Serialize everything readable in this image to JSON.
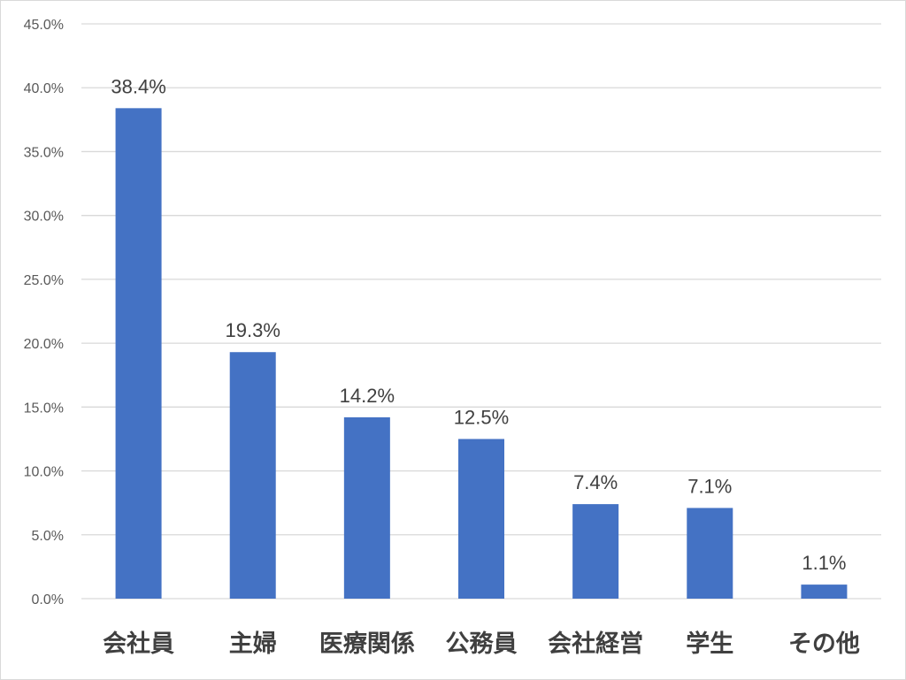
{
  "chart_data": {
    "type": "bar",
    "categories": [
      "会社員",
      "主婦",
      "医療関係",
      "公務員",
      "会社経営",
      "学生",
      "その他"
    ],
    "values": [
      38.4,
      19.3,
      14.2,
      12.5,
      7.4,
      7.1,
      1.1
    ],
    "data_labels": [
      "38.4%",
      "19.3%",
      "14.2%",
      "12.5%",
      "7.4%",
      "7.1%",
      "1.1%"
    ],
    "yticks": [
      0,
      5,
      10,
      15,
      20,
      25,
      30,
      35,
      40,
      45
    ],
    "ytick_labels": [
      "0.0%",
      "5.0%",
      "10.0%",
      "15.0%",
      "20.0%",
      "25.0%",
      "30.0%",
      "35.0%",
      "40.0%",
      "45.0%"
    ],
    "ylim": [
      0,
      45
    ],
    "grid": true,
    "bar_color": "#4472c4",
    "grid_color": "#d9d9d9"
  }
}
